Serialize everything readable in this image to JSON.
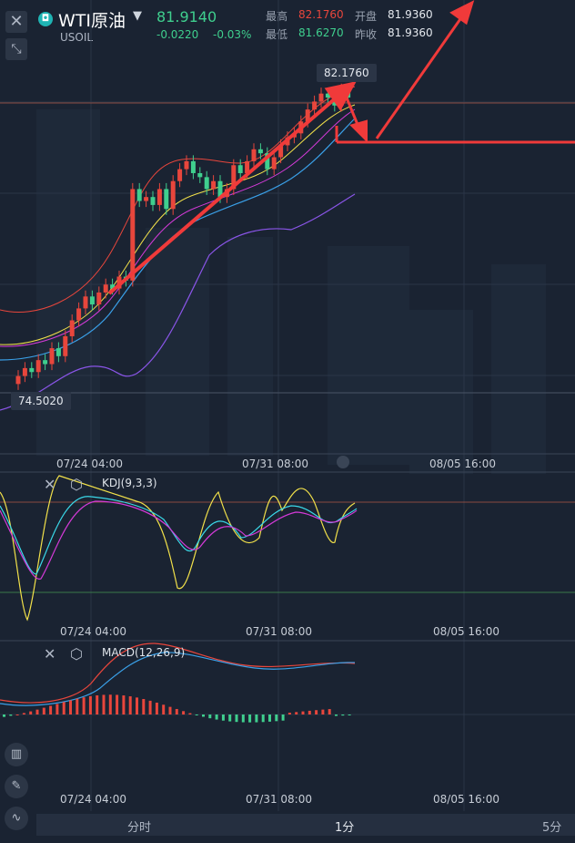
{
  "header": {
    "symbol": "WTI原油",
    "sub": "USOIL",
    "price": "81.9140",
    "change": "-0.0220",
    "change_pct": "-0.03%",
    "high_label": "最高",
    "high_value": "82.1760",
    "low_label": "最低",
    "low_value": "81.6270",
    "open_label": "开盘",
    "open_value": "81.9360",
    "prev_label": "昨收",
    "prev_value": "81.9360"
  },
  "main_chart": {
    "high_tag": "82.1760",
    "low_tag": "74.5020",
    "time_labels": [
      "07/24 04:00",
      "07/31 08:00",
      "08/05 16:00"
    ]
  },
  "kdj": {
    "label": "KDJ(9,3,3)",
    "time_labels": [
      "07/24 04:00",
      "07/31 08:00",
      "08/05 16:00"
    ]
  },
  "macd": {
    "label": "MACD(12,26,9)",
    "time_labels": [
      "07/24 04:00",
      "07/31 08:00",
      "08/05 16:00"
    ]
  },
  "timeframes": [
    "分时",
    "1分",
    "5分"
  ],
  "colors": {
    "up": "#e8463c",
    "down": "#3fcf8e",
    "bg": "#1a2332"
  },
  "chart_data": {
    "type": "candlestick",
    "instrument": "WTI原油",
    "price_range": [
      74.502,
      82.176
    ],
    "candles_close": [
      74.9,
      75.1,
      75.0,
      75.3,
      75.2,
      75.6,
      75.4,
      75.9,
      76.3,
      76.6,
      76.9,
      76.7,
      77.0,
      77.2,
      77.1,
      77.4,
      77.3,
      79.6,
      79.3,
      79.4,
      79.2,
      79.6,
      79.1,
      79.8,
      80.1,
      80.3,
      80.0,
      79.9,
      79.6,
      79.8,
      79.4,
      79.6,
      80.2,
      80.0,
      80.3,
      80.6,
      80.5,
      80.1,
      80.4,
      80.7,
      80.9,
      81.0,
      81.3,
      81.6,
      81.8,
      82.0,
      81.9,
      81.7,
      82.1,
      81.9
    ],
    "kdj_note": "K/D/J lines",
    "macd_note": "DIF/DEA/histogram"
  }
}
